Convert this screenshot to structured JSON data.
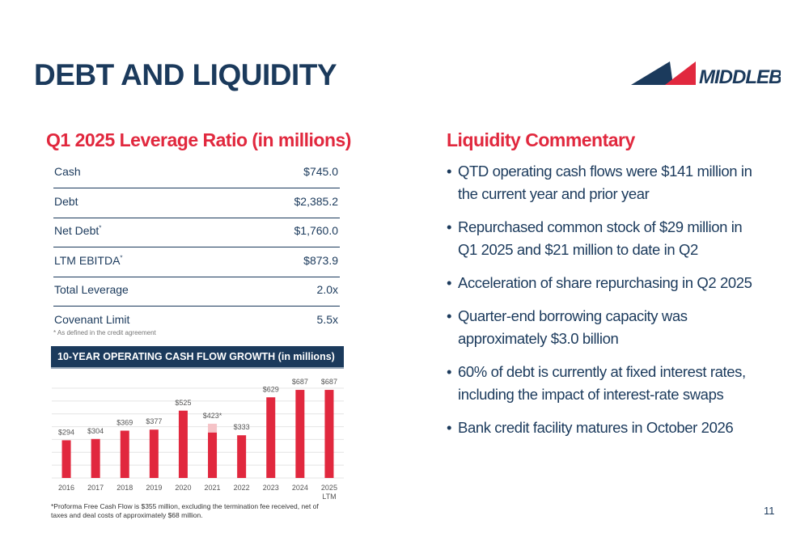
{
  "header": {
    "title": "DEBT AND LIQUIDITY",
    "logo_text": "MIDDLEBY"
  },
  "table": {
    "title": "Q1 2025 Leverage Ratio (in millions)",
    "rows": [
      {
        "label": "Cash",
        "value": "$745.0"
      },
      {
        "label": "Debt",
        "value": "$2,385.2"
      },
      {
        "label": "Net Debt",
        "sup": "*",
        "value": "$1,760.0"
      },
      {
        "label": "LTM EBITDA",
        "sup": "*",
        "value": "$873.9"
      },
      {
        "label": "Total Leverage",
        "value": "2.0x"
      },
      {
        "label": "Covenant Limit",
        "value": "5.5x"
      }
    ],
    "note": "* As defined in the credit agreement"
  },
  "chart_data": {
    "type": "bar",
    "title": "10-YEAR OPERATING CASH FLOW GROWTH (in millions)",
    "categories": [
      "2016",
      "2017",
      "2018",
      "2019",
      "2020",
      "2021",
      "2022",
      "2023",
      "2024",
      "2025 LTM"
    ],
    "values": [
      294,
      304,
      369,
      377,
      525,
      423,
      333,
      629,
      687,
      687
    ],
    "value_labels": [
      "$294",
      "$304",
      "$369",
      "$377",
      "$525",
      "$423*",
      "$333",
      "$629",
      "$687",
      "$687"
    ],
    "segments": [
      {
        "color": "#e1283e",
        "values": [
          294,
          304,
          369,
          377,
          525,
          355,
          333,
          629,
          687,
          687
        ]
      },
      {
        "color": "#f5c3c7",
        "values": [
          null,
          null,
          null,
          null,
          null,
          68,
          null,
          null,
          null,
          null
        ]
      }
    ],
    "ylim": [
      0,
      700
    ],
    "yticks": [
      0,
      100,
      200,
      300,
      400,
      500,
      600,
      700
    ],
    "grid": true,
    "footnote": "*Proforma Free Cash Flow is $355 million, excluding the termination fee received, net of taxes and deal costs of approximately $68 million."
  },
  "commentary": {
    "title": "Liquidity Commentary",
    "bullets": [
      "QTD operating cash flows were $141 million in the current year and prior year",
      "Repurchased common stock of $29 million in Q1 2025 and $21 million to date in Q2",
      "Acceleration of share repurchasing in Q2 2025",
      "Quarter-end borrowing capacity was approximately $3.0 billion",
      "60% of debt is currently at fixed interest rates, including the impact of interest-rate swaps",
      "Bank credit facility matures in October 2026"
    ]
  },
  "page_number": "11"
}
